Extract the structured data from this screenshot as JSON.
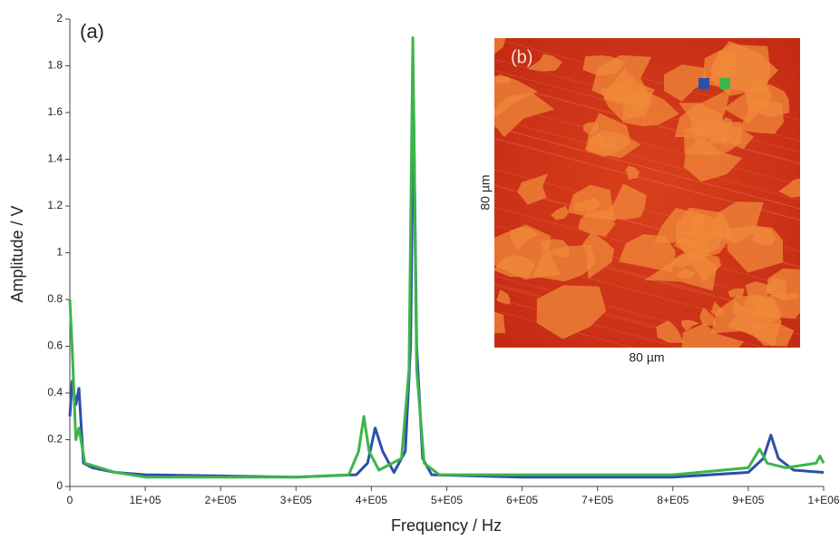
{
  "chart_data": {
    "type": "line",
    "x_label": "Frequency / Hz",
    "y_label": "Amplitude / V",
    "panel_labels": [
      "(a)",
      "(b)"
    ],
    "inset": {
      "x_label": "80 µm",
      "y_label": "80 µm"
    },
    "xlim": [
      0,
      1000000
    ],
    "xticks": [
      0,
      {
        "value": 100000,
        "label": "1E+05"
      },
      {
        "value": 200000,
        "label": "2+E05"
      },
      {
        "value": 300000,
        "label": "3+E05"
      },
      {
        "value": 400000,
        "label": "4+E05"
      },
      {
        "value": 500000,
        "label": "5+E05"
      },
      {
        "value": 600000,
        "label": "6+E05"
      },
      {
        "value": 700000,
        "label": "7+E05"
      },
      {
        "value": 800000,
        "label": "8+E05"
      },
      {
        "value": 900000,
        "label": "9+E05"
      },
      {
        "value": 1000000,
        "label": "1+E06"
      }
    ],
    "ylim": [
      0,
      2
    ],
    "yticks": [
      0,
      0.2,
      0.4,
      0.6,
      0.8,
      1,
      1.2,
      1.4,
      1.6,
      1.8,
      2
    ],
    "series": [
      {
        "color": "#2e4fa8",
        "x": [
          0,
          3000,
          8000,
          12000,
          18000,
          30000,
          60000,
          100000,
          200000,
          300000,
          380000,
          395000,
          405000,
          415000,
          430000,
          445000,
          452000,
          456000,
          460000,
          468000,
          480000,
          600000,
          800000,
          900000,
          920000,
          930000,
          940000,
          960000,
          1000000
        ],
        "values": [
          0.3,
          0.45,
          0.35,
          0.42,
          0.1,
          0.08,
          0.06,
          0.05,
          0.045,
          0.04,
          0.05,
          0.1,
          0.25,
          0.15,
          0.06,
          0.15,
          0.6,
          1.65,
          0.6,
          0.12,
          0.05,
          0.04,
          0.04,
          0.06,
          0.12,
          0.22,
          0.12,
          0.07,
          0.06
        ]
      },
      {
        "color": "#3cb54a",
        "x": [
          0,
          3000,
          8000,
          12000,
          20000,
          60000,
          100000,
          300000,
          370000,
          383000,
          390000,
          397000,
          410000,
          440000,
          450000,
          455000,
          460000,
          470000,
          490000,
          800000,
          900000,
          915000,
          925000,
          950000,
          990000,
          995000,
          1000000
        ],
        "values": [
          0.8,
          0.6,
          0.2,
          0.25,
          0.1,
          0.06,
          0.04,
          0.04,
          0.05,
          0.15,
          0.3,
          0.15,
          0.07,
          0.12,
          0.5,
          1.92,
          0.5,
          0.1,
          0.05,
          0.05,
          0.08,
          0.16,
          0.1,
          0.08,
          0.1,
          0.13,
          0.1
        ]
      }
    ]
  }
}
